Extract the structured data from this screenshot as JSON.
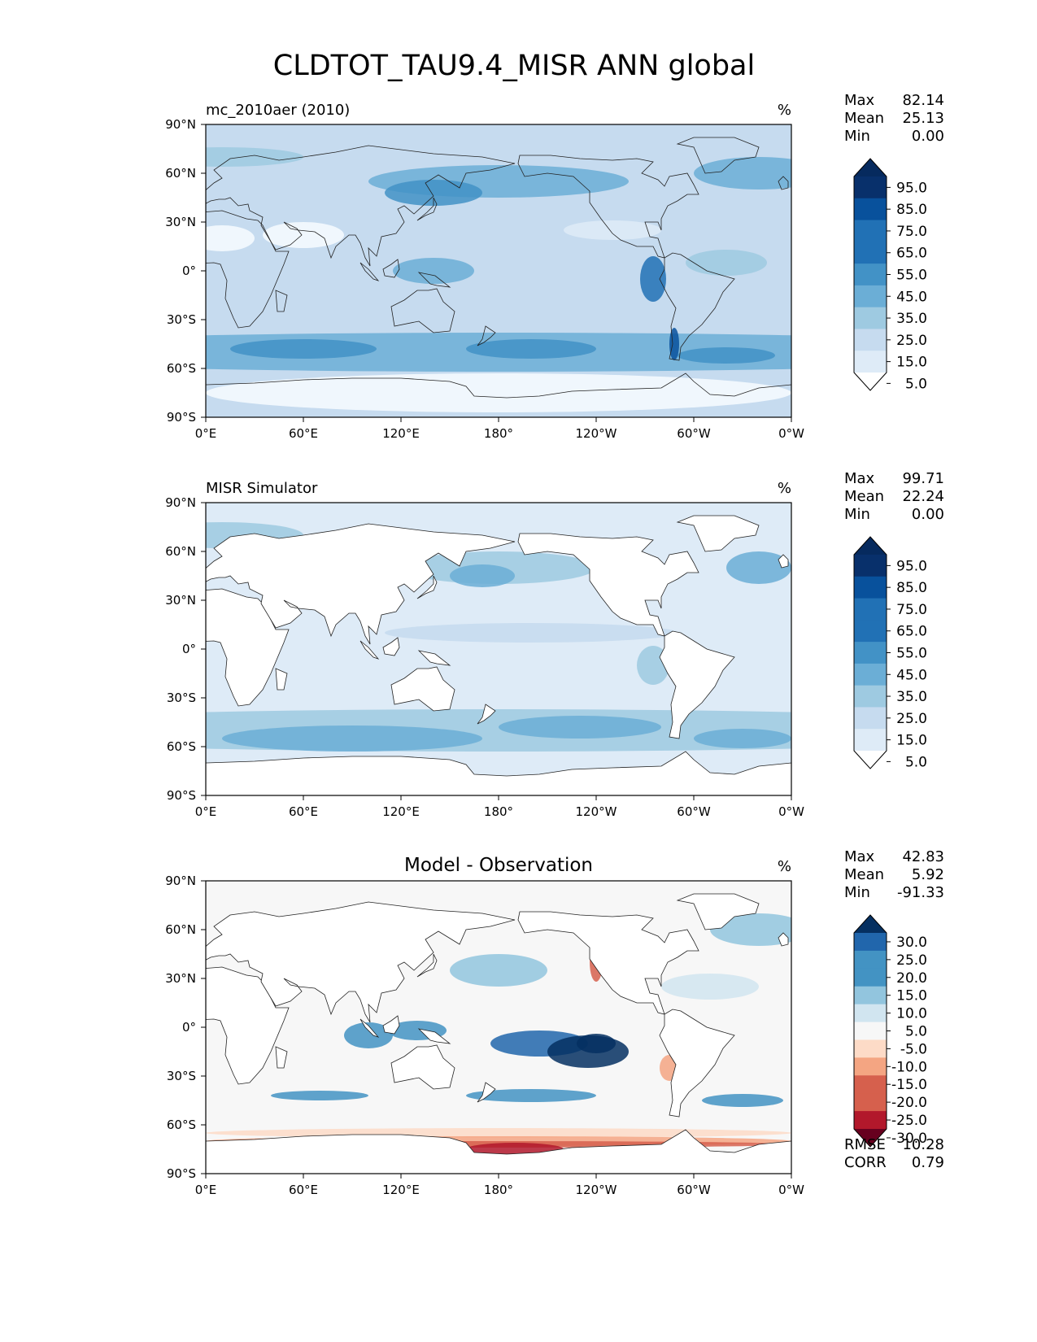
{
  "title": "CLDTOT_TAU9.4_MISR ANN global",
  "chart_data": [
    {
      "type": "heatmap",
      "panel": "test",
      "subtitle_left": "mc_2010aer (2010)",
      "subtitle_center": "",
      "units": "%",
      "stats": {
        "max_label": "Max",
        "max": "82.14",
        "mean_label": "Mean",
        "mean": "25.13",
        "min_label": "Min",
        "min": "0.00"
      },
      "colorbar": {
        "labels": [
          "95.0",
          "85.0",
          "75.0",
          "65.0",
          "55.0",
          "45.0",
          "35.0",
          "25.0",
          "15.0",
          "5.0"
        ],
        "levels": [
          0,
          5,
          15,
          25,
          35,
          45,
          55,
          65,
          75,
          85,
          95,
          100
        ]
      },
      "xticks": [
        "0°E",
        "60°E",
        "120°E",
        "180°",
        "120°W",
        "60°W",
        "0°W"
      ],
      "yticks": [
        "90°N",
        "60°N",
        "30°N",
        "0°",
        "30°S",
        "60°S",
        "90°S"
      ],
      "lat_range": [
        -90,
        90
      ],
      "lon_range": [
        0,
        360
      ]
    },
    {
      "type": "heatmap",
      "panel": "reference",
      "subtitle_left": "MISR Simulator",
      "subtitle_center": "",
      "units": "%",
      "stats": {
        "max_label": "Max",
        "max": "99.71",
        "mean_label": "Mean",
        "mean": "22.24",
        "min_label": "Min",
        "min": "0.00"
      },
      "colorbar": {
        "labels": [
          "95.0",
          "85.0",
          "75.0",
          "65.0",
          "55.0",
          "45.0",
          "35.0",
          "25.0",
          "15.0",
          "5.0"
        ],
        "levels": [
          0,
          5,
          15,
          25,
          35,
          45,
          55,
          65,
          75,
          85,
          95,
          100
        ]
      },
      "xticks": [
        "0°E",
        "60°E",
        "120°E",
        "180°",
        "120°W",
        "60°W",
        "0°W"
      ],
      "yticks": [
        "90°N",
        "60°N",
        "30°N",
        "0°",
        "30°S",
        "60°S",
        "90°S"
      ],
      "lat_range": [
        -90,
        90
      ],
      "lon_range": [
        0,
        360
      ]
    },
    {
      "type": "heatmap",
      "panel": "difference",
      "subtitle_left": "",
      "subtitle_center": "Model - Observation",
      "units": "%",
      "stats": {
        "max_label": "Max",
        "max": "42.83",
        "mean_label": "Mean",
        "mean": "5.92",
        "min_label": "Min",
        "min": "-91.33"
      },
      "metrics": {
        "rmse_label": "RMSE",
        "rmse": "10.28",
        "corr_label": "CORR",
        "corr": "0.79"
      },
      "colorbar": {
        "labels": [
          "30.0",
          "25.0",
          "20.0",
          "15.0",
          "10.0",
          "5.0",
          "-5.0",
          "-10.0",
          "-15.0",
          "-20.0",
          "-25.0",
          "-30.0"
        ],
        "levels": [
          -35,
          -30,
          -25,
          -20,
          -15,
          -10,
          -5,
          5,
          10,
          15,
          20,
          25,
          30,
          35
        ]
      },
      "xticks": [
        "0°E",
        "60°E",
        "120°E",
        "180°",
        "120°W",
        "60°W",
        "0°W"
      ],
      "yticks": [
        "90°N",
        "60°N",
        "30°N",
        "0°",
        "30°S",
        "60°S",
        "90°S"
      ],
      "lat_range": [
        -90,
        90
      ],
      "lon_range": [
        0,
        360
      ]
    }
  ],
  "colors": {
    "blues": [
      "#f7fbff",
      "#deebf7",
      "#c6dbef",
      "#9ecae1",
      "#6baed6",
      "#4292c6",
      "#2171b5",
      "#08519c",
      "#08306b",
      "#062a5e"
    ],
    "diff_pos": [
      "#f7f7f7",
      "#d1e5f0",
      "#92c5de",
      "#4393c3",
      "#2166ac",
      "#053061"
    ],
    "diff_neg": [
      "#fddbc7",
      "#f4a582",
      "#d6604d",
      "#b2182b",
      "#67001f"
    ],
    "coast": "#222222"
  }
}
